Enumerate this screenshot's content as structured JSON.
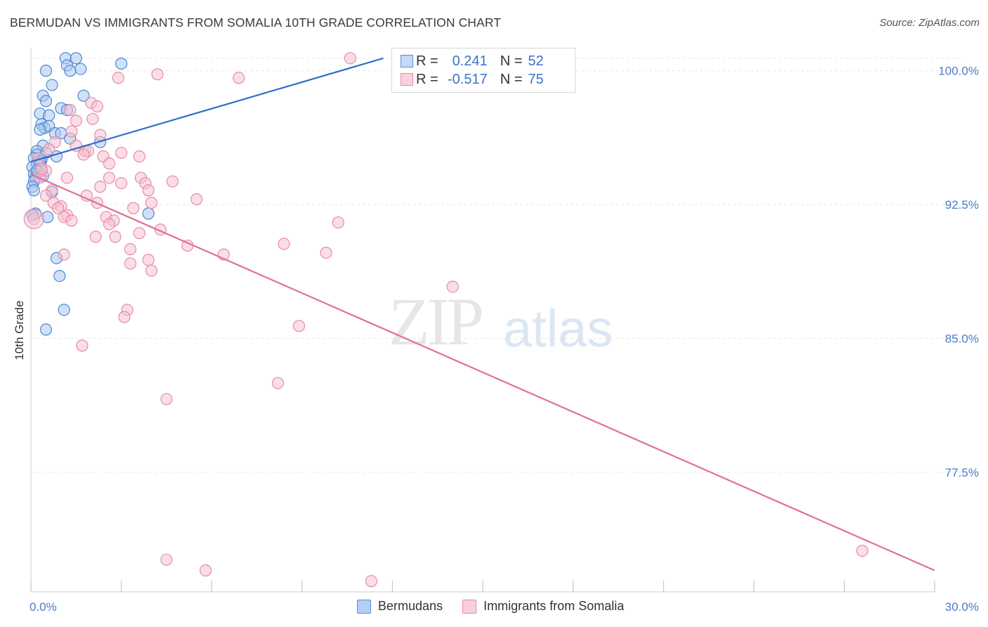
{
  "title": "BERMUDAN VS IMMIGRANTS FROM SOMALIA 10TH GRADE CORRELATION CHART",
  "source": "Source: ZipAtlas.com",
  "watermark": {
    "zip": "ZIP",
    "atlas": "atlas"
  },
  "legend_top": {
    "rows": [
      {
        "r_label": "R =",
        "r_value": "0.241",
        "n_label": "N =",
        "n_value": "52"
      },
      {
        "r_label": "R =",
        "r_value": "-0.517",
        "n_label": "N =",
        "n_value": "75"
      }
    ]
  },
  "legend_bottom": [
    "Bermudans",
    "Immigrants from Somalia"
  ],
  "colors": {
    "blue_fill": "#a9c8f0",
    "blue_stroke": "#4f86d4",
    "blue_line": "#2f6fc8",
    "pink_fill": "#f6c2d2",
    "pink_stroke": "#e98aa8",
    "pink_line": "#e0709a",
    "tick_label": "#4a7cc9",
    "grid": "#e6e6e6"
  },
  "chart_data": {
    "type": "scatter",
    "title": "BERMUDAN VS IMMIGRANTS FROM SOMALIA 10TH GRADE CORRELATION CHART",
    "xlabel": "",
    "ylabel": "10th Grade",
    "xlim": [
      0,
      30
    ],
    "ylim": [
      70.8,
      101.6
    ],
    "x_tick_labels": [
      "0.0%",
      "30.0%"
    ],
    "y_ticks": [
      77.5,
      85.0,
      92.5,
      100.0
    ],
    "y_tick_labels": [
      "77.5%",
      "85.0%",
      "92.5%",
      "100.0%"
    ],
    "series": [
      {
        "name": "Bermudans",
        "r": 0.241,
        "n": 52,
        "trend": {
          "x": [
            0,
            11.7
          ],
          "y": [
            94.9,
            100.7
          ]
        },
        "points": [
          [
            1.15,
            100.7
          ],
          [
            1.5,
            100.7
          ],
          [
            3.0,
            100.4
          ],
          [
            1.2,
            100.3
          ],
          [
            1.65,
            100.1
          ],
          [
            1.3,
            100.0
          ],
          [
            0.5,
            100.0
          ],
          [
            0.7,
            99.2
          ],
          [
            0.4,
            98.6
          ],
          [
            1.75,
            98.6
          ],
          [
            0.5,
            98.3
          ],
          [
            1.0,
            97.9
          ],
          [
            1.2,
            97.8
          ],
          [
            0.3,
            97.6
          ],
          [
            0.6,
            97.5
          ],
          [
            0.35,
            97.0
          ],
          [
            0.45,
            96.8
          ],
          [
            0.6,
            96.9
          ],
          [
            0.3,
            96.7
          ],
          [
            0.8,
            96.5
          ],
          [
            1.0,
            96.5
          ],
          [
            1.3,
            96.2
          ],
          [
            2.3,
            96.0
          ],
          [
            0.4,
            95.8
          ],
          [
            0.2,
            95.5
          ],
          [
            0.2,
            95.3
          ],
          [
            0.5,
            95.4
          ],
          [
            0.35,
            95.0
          ],
          [
            0.85,
            95.2
          ],
          [
            0.1,
            95.1
          ],
          [
            0.3,
            94.9
          ],
          [
            0.2,
            94.8
          ],
          [
            0.05,
            94.6
          ],
          [
            0.35,
            94.4
          ],
          [
            0.1,
            94.2
          ],
          [
            0.25,
            94.3
          ],
          [
            0.15,
            94.0
          ],
          [
            0.1,
            93.8
          ],
          [
            0.05,
            93.5
          ],
          [
            0.7,
            93.2
          ],
          [
            0.15,
            92.0
          ],
          [
            0.55,
            91.8
          ],
          [
            3.9,
            92.0
          ],
          [
            0.05,
            91.9
          ],
          [
            0.85,
            89.5
          ],
          [
            0.95,
            88.5
          ],
          [
            1.1,
            86.6
          ],
          [
            0.5,
            85.5
          ],
          [
            0.3,
            94.7
          ],
          [
            0.2,
            94.4
          ],
          [
            0.1,
            93.3
          ],
          [
            0.4,
            94.1
          ]
        ]
      },
      {
        "name": "Immigrants from Somalia",
        "r": -0.517,
        "n": 75,
        "trend": {
          "x": [
            0,
            30
          ],
          "y": [
            94.2,
            72.0
          ]
        },
        "points": [
          [
            10.6,
            100.7
          ],
          [
            4.2,
            99.8
          ],
          [
            2.9,
            99.6
          ],
          [
            6.9,
            99.6
          ],
          [
            2.0,
            98.2
          ],
          [
            2.2,
            98.0
          ],
          [
            1.3,
            97.8
          ],
          [
            1.5,
            97.2
          ],
          [
            2.05,
            97.3
          ],
          [
            1.35,
            96.6
          ],
          [
            2.3,
            96.4
          ],
          [
            0.8,
            96.0
          ],
          [
            1.5,
            95.8
          ],
          [
            1.8,
            95.5
          ],
          [
            1.9,
            95.5
          ],
          [
            3.0,
            95.4
          ],
          [
            3.6,
            95.2
          ],
          [
            1.75,
            95.3
          ],
          [
            2.4,
            95.2
          ],
          [
            2.6,
            94.8
          ],
          [
            0.5,
            94.4
          ],
          [
            0.3,
            94.0
          ],
          [
            1.2,
            94.0
          ],
          [
            2.6,
            94.0
          ],
          [
            3.65,
            94.0
          ],
          [
            3.0,
            93.7
          ],
          [
            3.8,
            93.7
          ],
          [
            4.7,
            93.8
          ],
          [
            2.3,
            93.5
          ],
          [
            0.7,
            93.3
          ],
          [
            3.9,
            93.3
          ],
          [
            1.85,
            93.0
          ],
          [
            0.5,
            93.0
          ],
          [
            5.5,
            92.8
          ],
          [
            2.2,
            92.6
          ],
          [
            0.75,
            92.6
          ],
          [
            4.0,
            92.6
          ],
          [
            1.0,
            92.4
          ],
          [
            0.9,
            92.3
          ],
          [
            3.4,
            92.3
          ],
          [
            1.2,
            91.9
          ],
          [
            2.5,
            91.8
          ],
          [
            2.75,
            91.6
          ],
          [
            1.1,
            91.8
          ],
          [
            1.35,
            91.6
          ],
          [
            2.6,
            91.4
          ],
          [
            10.2,
            91.5
          ],
          [
            0.1,
            91.7
          ],
          [
            4.3,
            91.1
          ],
          [
            3.6,
            90.9
          ],
          [
            2.15,
            90.7
          ],
          [
            2.8,
            90.7
          ],
          [
            5.2,
            90.2
          ],
          [
            8.4,
            90.3
          ],
          [
            3.3,
            90.0
          ],
          [
            6.4,
            89.7
          ],
          [
            9.8,
            89.8
          ],
          [
            1.1,
            89.7
          ],
          [
            3.9,
            89.4
          ],
          [
            3.3,
            89.2
          ],
          [
            4.0,
            88.8
          ],
          [
            14.0,
            87.9
          ],
          [
            3.2,
            86.6
          ],
          [
            3.1,
            86.2
          ],
          [
            8.9,
            85.7
          ],
          [
            1.7,
            84.6
          ],
          [
            8.2,
            82.5
          ],
          [
            4.5,
            81.6
          ],
          [
            4.5,
            72.6
          ],
          [
            5.8,
            72.0
          ],
          [
            11.3,
            71.4
          ],
          [
            27.6,
            73.1
          ],
          [
            0.25,
            95.1
          ],
          [
            0.35,
            94.5
          ],
          [
            0.6,
            95.6
          ]
        ]
      }
    ]
  }
}
